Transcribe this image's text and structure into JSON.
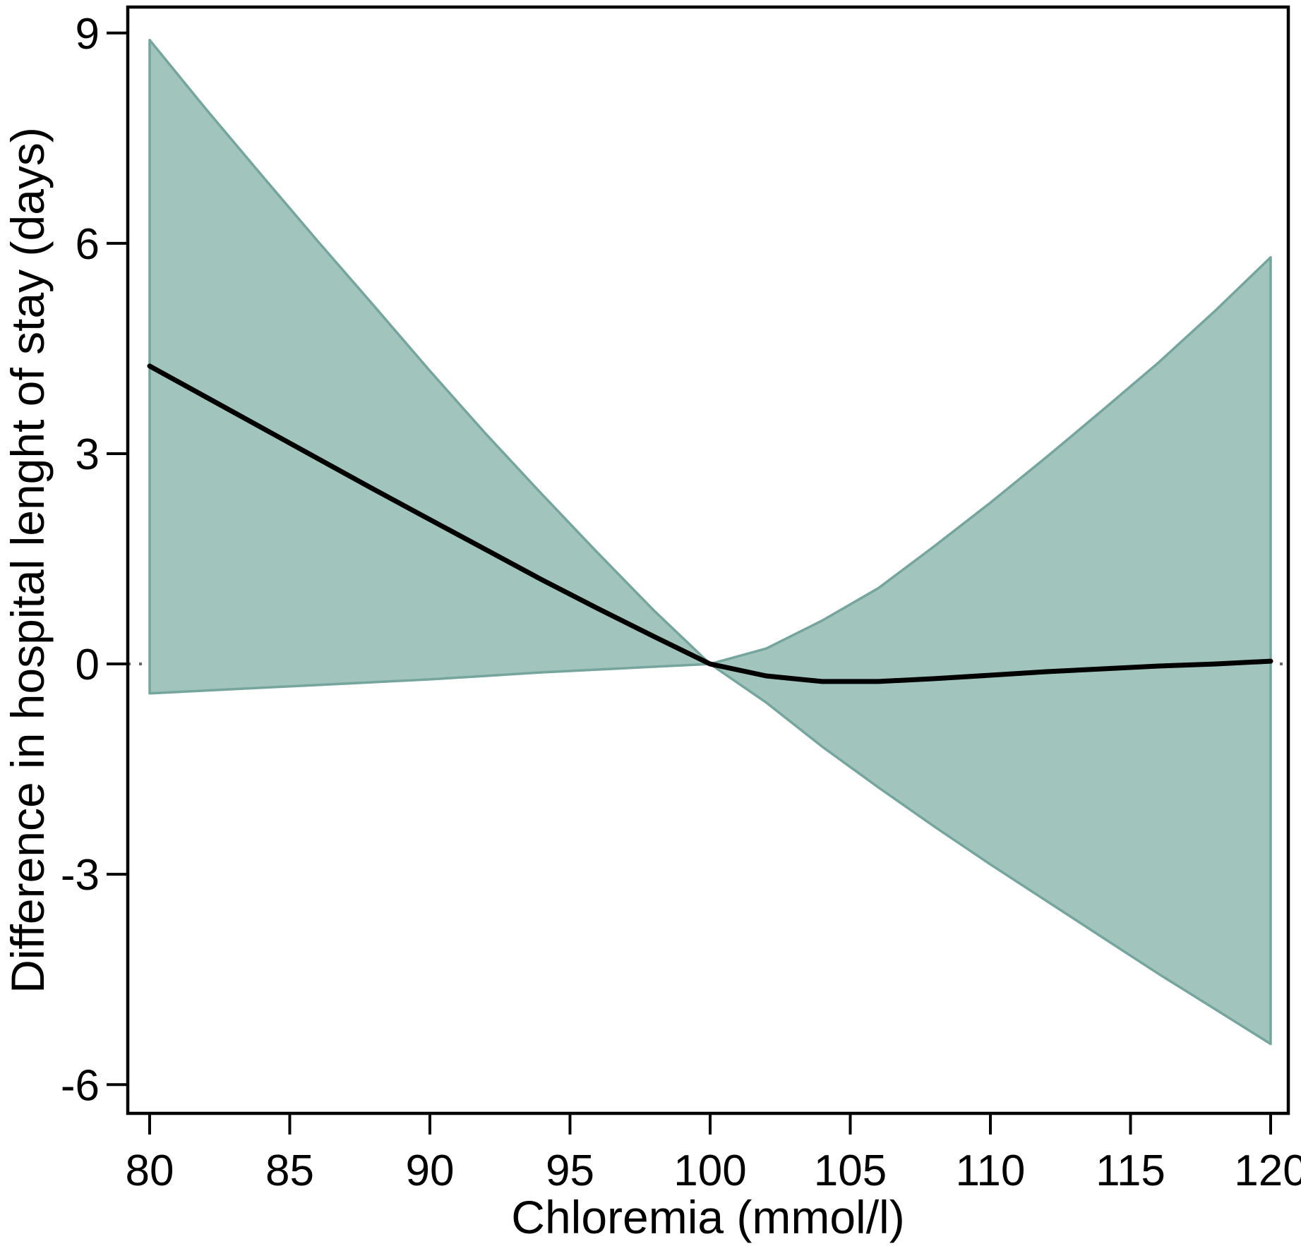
{
  "page": {
    "background": "#ffffff"
  },
  "chart_data": {
    "type": "line",
    "title": "",
    "xlabel": "Chloremia (mmol/l)",
    "ylabel": "Difference in hospital lenght of stay (days)",
    "legend": "none",
    "grid": false,
    "xlim": [
      79.22,
      120.63
    ],
    "ylim": [
      -6.41,
      9.37
    ],
    "x_ticks": [
      80,
      85,
      90,
      95,
      100,
      105,
      110,
      115,
      120
    ],
    "y_ticks": [
      9,
      6,
      3,
      0,
      -3,
      -6
    ],
    "reference_line_y": 0,
    "x": [
      80,
      82,
      84,
      86,
      88,
      90,
      92,
      94,
      96,
      98,
      100,
      102,
      104,
      106,
      108,
      110,
      112,
      114,
      116,
      118,
      120
    ],
    "series": [
      {
        "name": "predicted-difference",
        "role": "mean-line",
        "values": [
          4.25,
          3.81,
          3.37,
          2.93,
          2.49,
          2.06,
          1.63,
          1.2,
          0.79,
          0.39,
          0.0,
          -0.17,
          -0.25,
          -0.25,
          -0.21,
          -0.16,
          -0.11,
          -0.07,
          -0.03,
          0.0,
          0.04
        ]
      },
      {
        "name": "ci-upper",
        "role": "band-upper",
        "values": [
          8.9,
          7.92,
          6.97,
          6.03,
          5.11,
          4.18,
          3.28,
          2.42,
          1.58,
          0.76,
          0.0,
          0.22,
          0.62,
          1.08,
          1.68,
          2.3,
          2.95,
          3.62,
          4.3,
          5.03,
          5.8
        ]
      },
      {
        "name": "ci-lower",
        "role": "band-lower",
        "values": [
          -0.42,
          -0.38,
          -0.34,
          -0.3,
          -0.26,
          -0.22,
          -0.17,
          -0.12,
          -0.08,
          -0.04,
          0.0,
          -0.55,
          -1.18,
          -1.76,
          -2.32,
          -2.86,
          -3.38,
          -3.9,
          -4.42,
          -4.92,
          -5.42
        ]
      }
    ],
    "colors": {
      "band_fill": "#a1c4bd",
      "band_stroke": "#75a59c",
      "mean_line": "#000000",
      "axis": "#000000",
      "reference_line": "#666666"
    }
  }
}
